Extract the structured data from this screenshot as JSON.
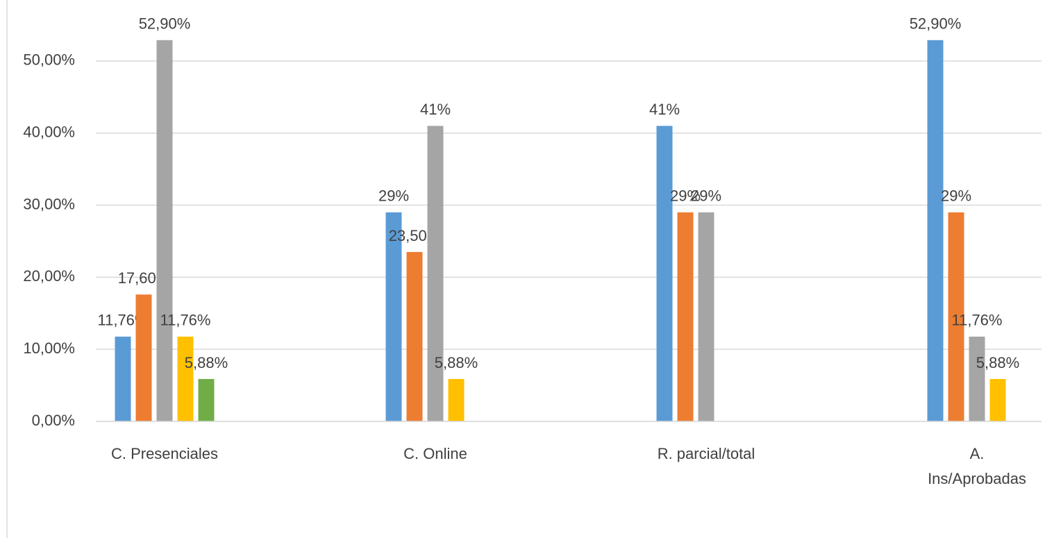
{
  "chart_data": {
    "type": "bar",
    "categories": [
      "C. Presenciales",
      "C. Online",
      "R. parcial/total",
      "A. Ins/Aprobadas"
    ],
    "series": [
      {
        "color": "#5b9bd5",
        "values": [
          11.76,
          29,
          41,
          52.9
        ],
        "value_labels": [
          "11,76%",
          "29%",
          "41%",
          "52,90%"
        ]
      },
      {
        "color": "#ed7d31",
        "values": [
          17.6,
          23.5,
          29,
          29
        ],
        "value_labels": [
          "17,60%",
          "23,50%",
          "29%",
          "29%"
        ]
      },
      {
        "color": "#a5a5a5",
        "values": [
          52.9,
          41,
          29,
          11.76
        ],
        "value_labels": [
          "52,90%",
          "41%",
          "29%",
          "11,76%"
        ]
      },
      {
        "color": "#ffc000",
        "values": [
          11.76,
          5.88,
          null,
          5.88
        ],
        "value_labels": [
          "11,76%",
          "5,88%",
          null,
          "5,88%"
        ]
      },
      {
        "color": "#70ad47",
        "values": [
          5.88,
          null,
          null,
          null
        ],
        "value_labels": [
          "5,88%",
          null,
          null,
          null
        ]
      }
    ],
    "ylim": [
      0,
      55
    ],
    "yticks": [
      {
        "value": 0,
        "label": "0,00%"
      },
      {
        "value": 10,
        "label": "10,00%"
      },
      {
        "value": 20,
        "label": "20,00%"
      },
      {
        "value": 30,
        "label": "30,00%"
      },
      {
        "value": 40,
        "label": "40,00%"
      },
      {
        "value": 50,
        "label": "50,00%"
      }
    ],
    "grid": true
  }
}
